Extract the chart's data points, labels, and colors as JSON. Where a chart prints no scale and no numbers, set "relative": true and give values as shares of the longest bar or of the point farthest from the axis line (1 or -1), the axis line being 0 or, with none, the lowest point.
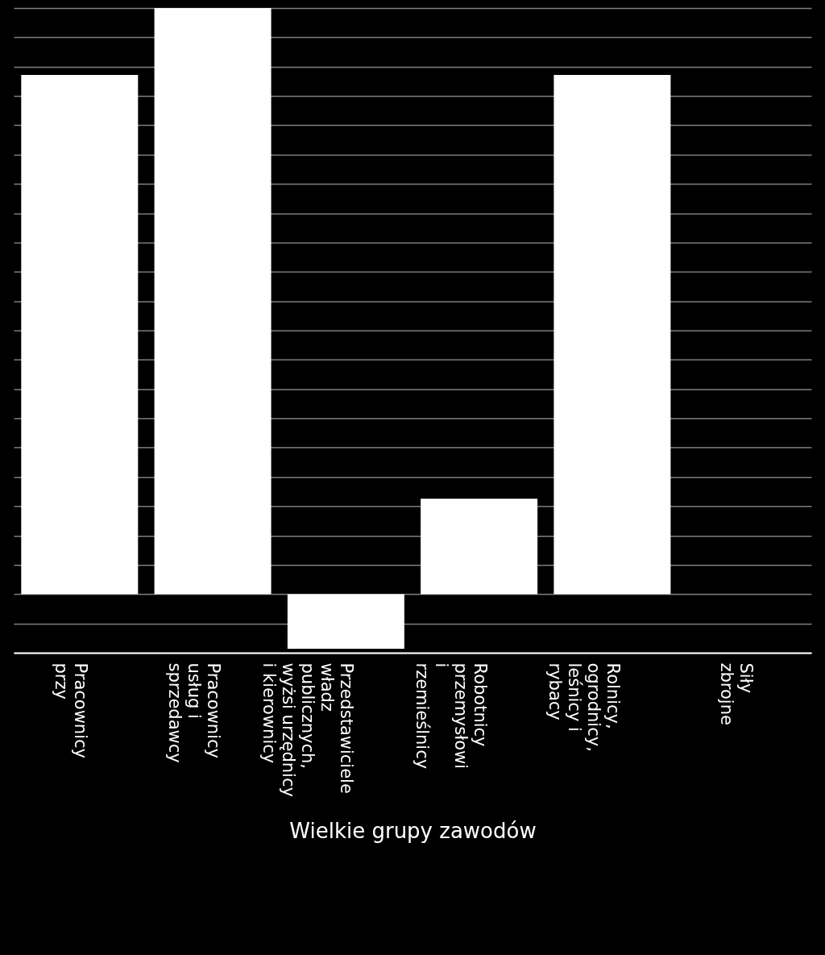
{
  "chart_data": {
    "type": "bar",
    "relative": true,
    "xlabel": "Wielkie grupy zawodów",
    "categories": [
      "Pracownicy\nprzy",
      "Pracownicy\nusług i\nsprzedawcy",
      "Przedstawiciele\nwładz\npublicznych,\nwyżsi urzędnicy\ni kierownicy",
      "Robotnicy\nprzemysłowi\ni\nrzemieślnicy",
      "Rolnicy,\nogrodnicy,\nleśnicy i\nrybacy",
      "Siły\nzbrojne"
    ],
    "values": [
      0.886,
      1,
      -0.093,
      0.163,
      0.886,
      0
    ],
    "color": "#ffffff",
    "grid": "y"
  }
}
